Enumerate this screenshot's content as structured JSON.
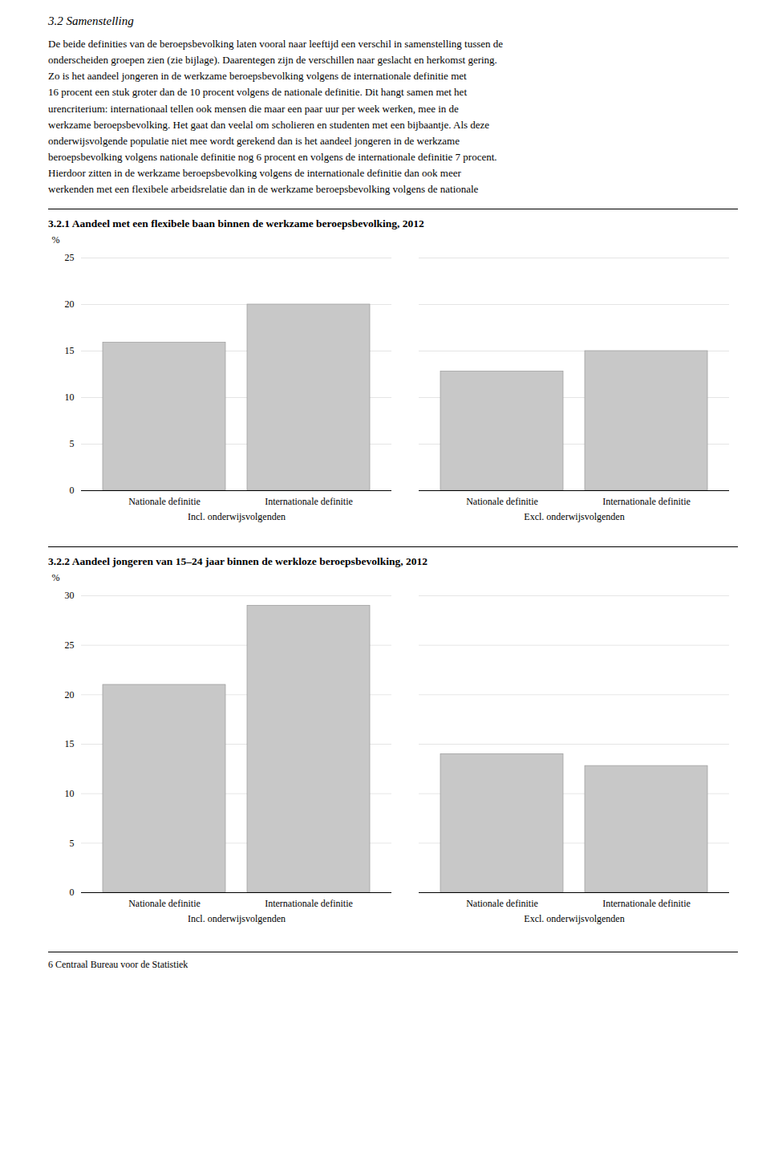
{
  "page_title": "3.2   Samenstelling",
  "body_text": [
    "De beide definities van de beroepsbevolking laten vooral naar leeftijd een verschil in samenstelling tussen de",
    "onderscheiden groepen zien (zie bijlage). Daarentegen zijn de verschillen naar geslacht en herkomst gering.",
    "Zo is het aandeel jongeren in de werkzame beroepsbevolking volgens de internationale definitie met",
    "16 procent een stuk groter dan de 10 procent volgens de nationale definitie. Dit hangt samen met het",
    "urencriterium: internationaal tellen ook mensen die maar een paar uur per week werken, mee in de",
    "werkzame beroepsbevolking. Het gaat dan veelal om scholieren en studenten met een bijbaantje. Als deze",
    "onderwijsvolgende populatie niet mee wordt gerekend dan is het aandeel jongeren in de werkzame",
    "beroepsbevolking volgens nationale definitie nog 6 procent en volgens de internationale definitie 7 procent.",
    "Hierdoor zitten in de werkzame beroepsbevolking volgens de internationale definitie dan ook meer",
    "werkenden met een flexibele arbeidsrelatie  dan in de werkzame beroepsbevolking volgens de nationale"
  ],
  "footer": "6   Centraal Bureau voor de Statistiek",
  "chart_data": [
    {
      "type": "bar",
      "title": "3.2.1   Aandeel met een flexibele baan binnen de werkzame beroepsbevolking, 2012",
      "categories": [
        "Nationale definitie",
        "Internationale definitie",
        "Nationale definitie",
        "Internationale definitie"
      ],
      "groups": [
        "Incl. onderwijsvolgenden",
        "Incl. onderwijsvolgenden",
        "Excl. onderwijsvolgenden",
        "Excl. onderwijsvolgenden"
      ],
      "values": [
        15.9,
        20.0,
        12.8,
        15.0
      ],
      "color": "#c8c8c8",
      "ylabel": "%",
      "ylim": [
        0,
        25
      ],
      "yticks": [
        0,
        5,
        10,
        15,
        20,
        25
      ],
      "grid": true
    },
    {
      "type": "bar",
      "title": "3.2.2   Aandeel jongeren van 15–24 jaar binnen de werkloze beroepsbevolking, 2012",
      "categories": [
        "Nationale definitie",
        "Internationale definitie",
        "Nationale definitie",
        "Internationale definitie"
      ],
      "groups": [
        "Incl. onderwijsvolgenden",
        "Incl. onderwijsvolgenden",
        "Excl. onderwijsvolgenden",
        "Excl. onderwijsvolgenden"
      ],
      "values": [
        21.0,
        29.0,
        14.0,
        12.8
      ],
      "color": "#c8c8c8",
      "ylabel": "%",
      "ylim": [
        0,
        30
      ],
      "yticks": [
        0,
        5,
        10,
        15,
        20,
        25,
        30
      ],
      "grid": true
    }
  ]
}
